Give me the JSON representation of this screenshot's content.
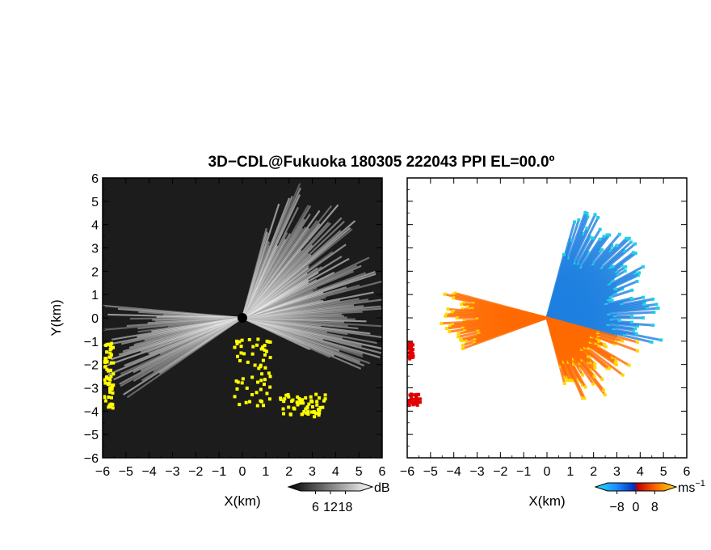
{
  "title": "3D−CDL@Fukuoka 180305 222043 PPI EL=00.0º",
  "colors": {
    "reflectivity_background": "#1c1c1c",
    "reflectivity_echo": "#d9d9d9",
    "reflectivity_highlight": "#ffff00",
    "velocity_negative": "#1e7fe0",
    "velocity_positive": "#ff6a00",
    "velocity_fringe_cyan": "#20d0e8",
    "velocity_fringe_yellow": "#ffd800",
    "velocity_fringe_red": "#e00000"
  },
  "chart_data": [
    {
      "type": "heatmap",
      "name": "reflectivity-ppi",
      "xlabel": "X(km)",
      "ylabel": "Y(km)",
      "xlim": [
        -6,
        6
      ],
      "ylim": [
        -6,
        6
      ],
      "xticks": [
        -6,
        -5,
        -4,
        -3,
        -2,
        -1,
        0,
        1,
        2,
        3,
        4,
        5,
        6
      ],
      "yticks": [
        -6,
        -5,
        -4,
        -3,
        -2,
        -1,
        0,
        1,
        2,
        3,
        4,
        5,
        6
      ],
      "xtick_labels": [
        "−6",
        "−5",
        "−4",
        "−3",
        "−2",
        "−1",
        "0",
        "1",
        "2",
        "3",
        "4",
        "5",
        "6"
      ],
      "ytick_labels": [
        "−6",
        "−5",
        "−4",
        "−3",
        "−2",
        "−1",
        "0",
        "1",
        "2",
        "3",
        "4",
        "5",
        "6"
      ],
      "colorbar": {
        "unit": "dB",
        "ticks": [
          6,
          12,
          18
        ],
        "tick_labels": [
          "6",
          "12",
          "18"
        ]
      },
      "echo_sectors_deg": [
        [
          -25,
          75
        ],
        [
          175,
          215
        ]
      ],
      "highlight_regions": [
        {
          "x": [
            -0.4,
            1.2
          ],
          "y": [
            -0.8,
            -3.8
          ]
        },
        {
          "x": [
            1.5,
            3.5
          ],
          "y": [
            -3.2,
            -4.2
          ]
        },
        {
          "x": [
            -6.0,
            -5.6
          ],
          "y": [
            -1.0,
            -3.8
          ]
        }
      ]
    },
    {
      "type": "heatmap",
      "name": "doppler-velocity-ppi",
      "xlabel": "X(km)",
      "xlim": [
        -6,
        6
      ],
      "ylim": [
        -6,
        6
      ],
      "xticks": [
        -6,
        -5,
        -4,
        -3,
        -2,
        -1,
        0,
        1,
        2,
        3,
        4,
        5,
        6
      ],
      "yticks": [
        -6,
        -5,
        -4,
        -3,
        -2,
        -1,
        0,
        1,
        2,
        3,
        4,
        5,
        6
      ],
      "xtick_labels": [
        "−6",
        "−5",
        "−4",
        "−3",
        "−2",
        "−1",
        "0",
        "1",
        "2",
        "3",
        "4",
        "5",
        "6"
      ],
      "colorbar": {
        "unit": "ms",
        "unit_exp": "−1",
        "ticks": [
          -8,
          0,
          8
        ],
        "tick_labels": [
          "−8",
          "0",
          "8"
        ]
      },
      "negative_sector_deg": [
        -15,
        75
      ],
      "positive_sectors_deg": [
        [
          -75,
          -15
        ],
        [
          165,
          200
        ]
      ]
    }
  ]
}
